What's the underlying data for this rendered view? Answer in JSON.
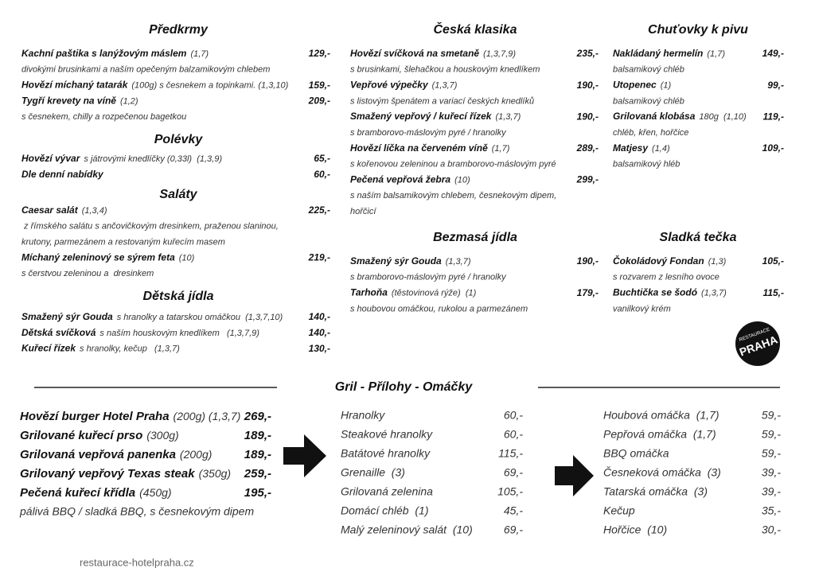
{
  "columns": [
    {
      "sections": [
        {
          "title": "Předkrmy",
          "items": [
            {
              "name": "Kachní paštika s lanýžovým máslem",
              "extra": "(1,7)",
              "price": "129,-",
              "desc": [
                "divokými brusinkami a naším opečeným balzamikovým chlebem"
              ]
            },
            {
              "name": "Hovězí míchaný tatarák",
              "extra": "(100g) s česnekem a topinkami. (1,3,10)",
              "price": "159,-"
            },
            {
              "name": "Tygří krevety na víně",
              "extra": "(1,2)",
              "price": "209,-",
              "desc": [
                "s česnekem, chilly a rozpečenou bagetkou"
              ]
            }
          ]
        },
        {
          "title": "Polévky",
          "items": [
            {
              "name": "Hovězí vývar",
              "extra": "s játrovými knedlíčky (0,33l)  (1,3,9)",
              "price": "65,-"
            },
            {
              "name": "Dle denní nabídky",
              "price": "60,-"
            }
          ]
        },
        {
          "title": "Saláty",
          "items": [
            {
              "name": "Caesar salát",
              "extra": "(1,3,4)",
              "price": "225,-",
              "desc": [
                " z římského salátu s ančovičkovým dresinkem, praženou slaninou,",
                "krutony, parmezánem a restovaným kuřecím masem"
              ]
            },
            {
              "name": "Míchaný zeleninový se sýrem feta",
              "extra": "(10)",
              "price": "219,-",
              "desc": [
                "s čerstvou zeleninou a  dresinkem"
              ]
            }
          ]
        },
        {
          "title": "Dětská jídla",
          "items": [
            {
              "name": "Smažený sýr Gouda",
              "extra": "s hranolky a tatarskou omáčkou  (1,3,7,10)",
              "price": "140,-"
            },
            {
              "name": "Dětská svíčková",
              "extra": "s naším houskovým knedlíkem   (1,3,7,9)",
              "price": "140,-"
            },
            {
              "name": "Kuřecí řízek",
              "extra": "s hranolky, kečup   (1,3,7)",
              "price": "130,-"
            }
          ]
        }
      ]
    },
    {
      "sections": [
        {
          "title": "Česká klasika",
          "items": [
            {
              "name": "Hovězí svíčková na smetaně",
              "extra": "(1,3,7,9)",
              "price": "235,-",
              "desc": [
                "s brusinkami, šlehačkou a houskovým knedlíkem"
              ]
            },
            {
              "name": "Vepřové výpečky",
              "extra": "(1,3,7)",
              "price": "190,-",
              "desc": [
                "s listovým špenátem a variací českých knedlíků"
              ]
            },
            {
              "name": "Smažený vepřový / kuřecí řízek",
              "extra": "(1,3,7)",
              "price": "190,-",
              "desc": [
                "s bramborovo-máslovým pyré / hranolky"
              ]
            },
            {
              "name": "Hovězí líčka na červeném víně",
              "extra": "(1,7)",
              "price": "289,-",
              "desc": [
                "s kořenovou zeleninou a bramborovo-máslovým pyré"
              ]
            },
            {
              "name": "Pečená vepřová žebra",
              "extra": "(10)",
              "price": "299,-",
              "desc": [
                "s naším balsamikovým chlebem, česnekovým dipem,",
                "hořčicí"
              ]
            }
          ]
        },
        {
          "title": "Bezmasá jídla",
          "items": [
            {
              "name": "Smažený sýr Gouda",
              "extra": "(1,3,7)",
              "price": "190,-",
              "desc": [
                "s bramborovo-máslovým pyré / hranolky"
              ]
            },
            {
              "name": "Tarhoňa",
              "extra": "(těstovinová rýže)  (1)",
              "price": "179,-",
              "desc": [
                "s houbovou omáčkou, rukolou a parmezánem"
              ]
            }
          ]
        }
      ]
    },
    {
      "sections": [
        {
          "title": "Chuťovky k pivu",
          "items": [
            {
              "name": "Nakládaný hermelín",
              "extra": "(1,7)",
              "price": "149,-",
              "desc": [
                "balsamikový chléb"
              ]
            },
            {
              "name": "Utopenec",
              "extra": "(1)",
              "price": "99,-",
              "desc": [
                "balsamikový chléb"
              ]
            },
            {
              "name": "Grilovaná klobása",
              "extra": "180g  (1,10)",
              "price": "119,-",
              "desc": [
                "chléb, křen, hořčice"
              ]
            },
            {
              "name": "Matjesy",
              "extra": "(1,4)",
              "price": "109,-",
              "desc": [
                "balsamikový hléb"
              ]
            }
          ]
        },
        {
          "title": "Sladká tečka",
          "items": [
            {
              "name": "Čokoládový Fondan",
              "extra": "(1,3)",
              "price": "105,-",
              "desc": [
                "s rozvarem z lesního ovoce"
              ]
            },
            {
              "name": "Buchtička se šodó",
              "extra": "(1,3,7)",
              "price": "115,-",
              "desc": [
                "vanilkový krém"
              ]
            }
          ]
        }
      ]
    }
  ],
  "grill": {
    "title": "Gril - Přílohy - Omáčky",
    "mains": [
      {
        "name": "Hovězí burger Hotel Praha",
        "extra": "(200g) (1,3,7)",
        "price": "269,-"
      },
      {
        "name": "Grilované kuřecí prso",
        "extra": "(300g)",
        "price": "189,-"
      },
      {
        "name": "Grilovaná vepřová panenka",
        "extra": "(200g)",
        "price": "189,-"
      },
      {
        "name": "Grilovaný vepřový Texas steak",
        "extra": "(350g)",
        "price": "259,-"
      },
      {
        "name": "Pečená kuřecí křídla",
        "extra": "(450g)",
        "price": "195,-"
      }
    ],
    "note": "pálivá BBQ / sladká BBQ, s česnekovým dipem",
    "sides": [
      {
        "name": "Hranolky",
        "price": "60,-"
      },
      {
        "name": "Steakové hranolky",
        "price": "60,-"
      },
      {
        "name": "Batátové hranolky",
        "price": "115,-"
      },
      {
        "name": "Grenaille  (3)",
        "price": "69,-"
      },
      {
        "name": "Grilovaná zelenina",
        "price": "105,-"
      },
      {
        "name": "Domácí chléb  (1)",
        "price": "45,-"
      },
      {
        "name": "Malý zeleninový salát  (10)",
        "price": "69,-"
      }
    ],
    "sauces": [
      {
        "name": "Houbová omáčka  (1,7)",
        "price": "59,-"
      },
      {
        "name": "Pepřová omáčka  (1,7)",
        "price": "59,-"
      },
      {
        "name": "BBQ omáčka",
        "price": "59,-"
      },
      {
        "name": "Česneková omáčka  (3)",
        "price": "39,-"
      },
      {
        "name": "Tatarská omáčka  (3)",
        "price": "39,-"
      },
      {
        "name": "Kečup",
        "price": "35,-"
      },
      {
        "name": "Hořčice  (10)",
        "price": "30,-"
      }
    ]
  },
  "logo": {
    "top": "RESTAURACE",
    "main": "PRAHA"
  },
  "footer": "restaurace-hotelpraha.cz"
}
